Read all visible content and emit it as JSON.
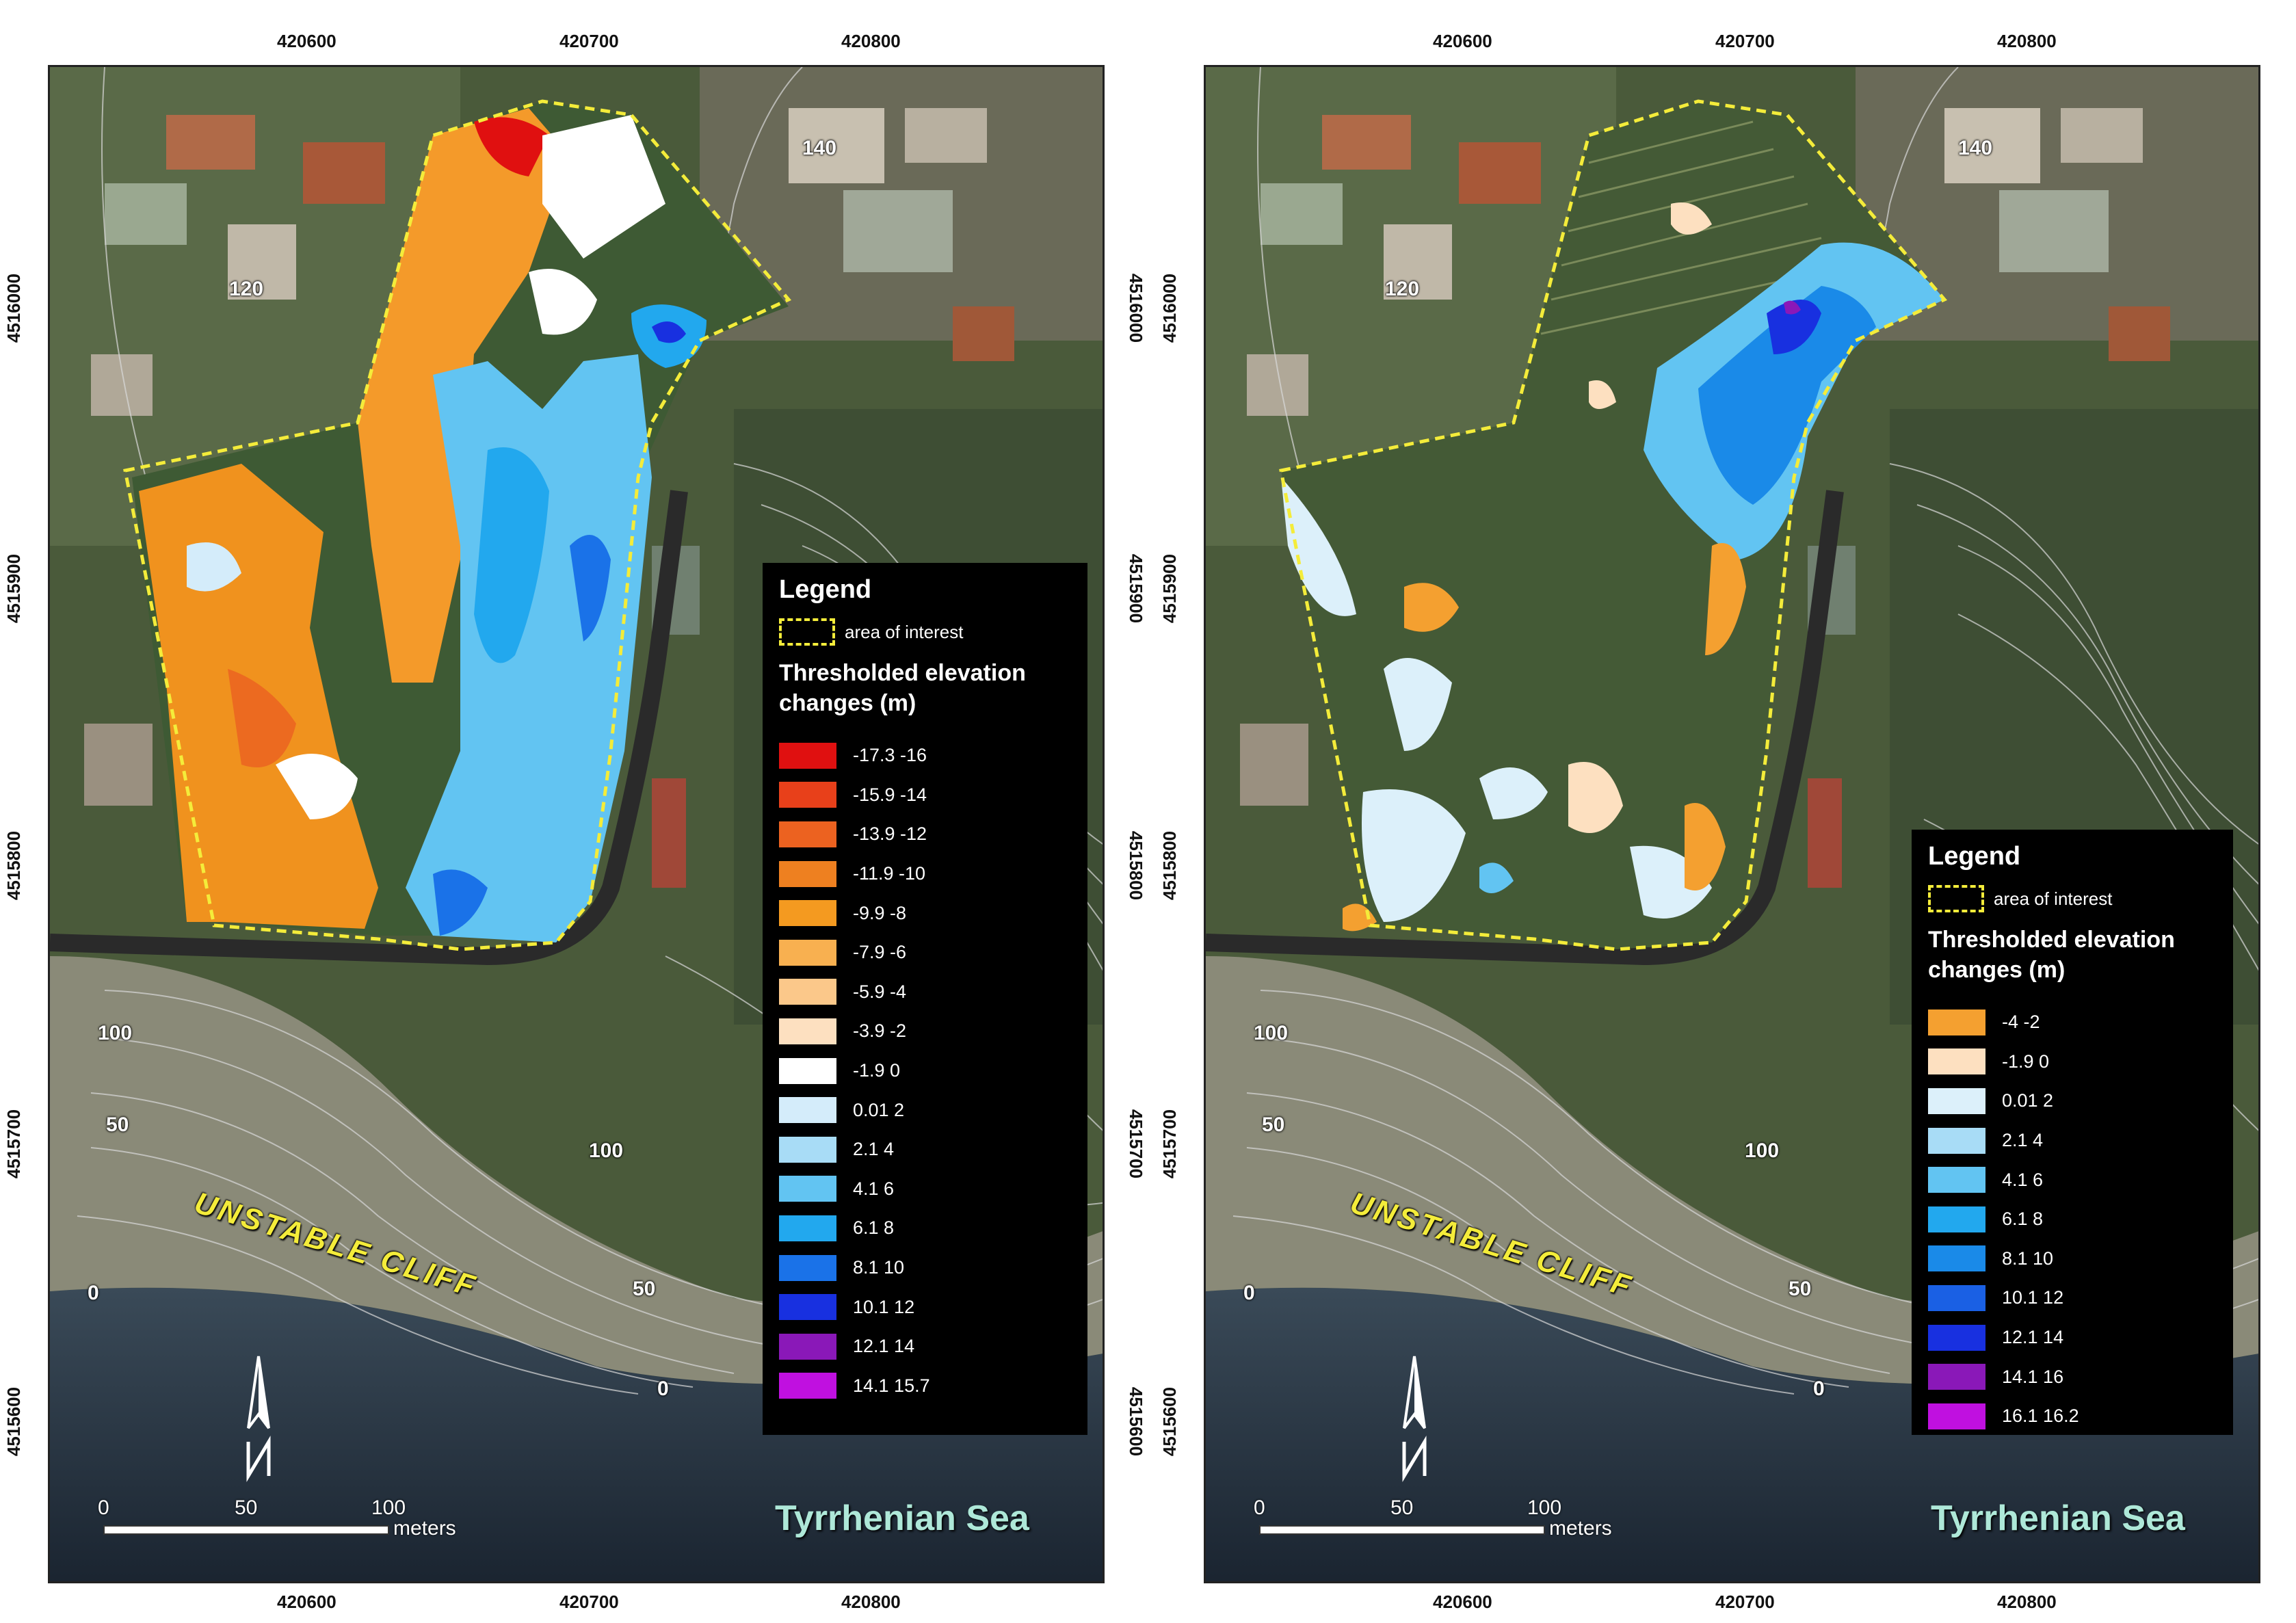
{
  "legend_title": "Legend",
  "aoi_label": "area of interest",
  "legend_subtitle_line1": "Thresholded elevation",
  "legend_subtitle_line2": "changes (m)",
  "x_ticks": [
    "420600",
    "420700",
    "420800"
  ],
  "y_ticks": [
    "4516000",
    "4515900",
    "4515800",
    "4515700",
    "4515600"
  ],
  "contours": [
    "140",
    "120",
    "100",
    "50",
    "100",
    "50",
    "0",
    "0"
  ],
  "cliff_label": "UNSTABLE CLIFF",
  "sea_label": "Tyrrhenian Sea",
  "scale": {
    "v0": "0",
    "v1": "50",
    "v2": "100",
    "unit": "meters"
  },
  "colors": {
    "aoi_outline": "#f4ec3a",
    "legend_bg": "#000000",
    "sea": "#1e2a3a"
  },
  "panels": [
    {
      "legend_items": [
        {
          "label": "-17.3  -16",
          "color": "#e01010"
        },
        {
          "label": "-15.9  -14",
          "color": "#e8401a"
        },
        {
          "label": "-13.9  -12",
          "color": "#ec6220"
        },
        {
          "label": "-11.9  -10",
          "color": "#ee8020"
        },
        {
          "label": "-9.9  -8",
          "color": "#f49a20"
        },
        {
          "label": "-7.9  -6",
          "color": "#f8b050"
        },
        {
          "label": "-5.9  -4",
          "color": "#fbc88a"
        },
        {
          "label": "-3.9  -2",
          "color": "#fde0c0"
        },
        {
          "label": "-1.9  0",
          "color": "#ffffff"
        },
        {
          "label": "0.01  2",
          "color": "#d4ecfa"
        },
        {
          "label": "2.1  4",
          "color": "#a8dcf6"
        },
        {
          "label": "4.1  6",
          "color": "#62c4f2"
        },
        {
          "label": "6.1  8",
          "color": "#22a8ee"
        },
        {
          "label": "8.1  10",
          "color": "#1a72e8"
        },
        {
          "label": "10.1  12",
          "color": "#1830e0"
        },
        {
          "label": "12.1  14",
          "color": "#8a18b8"
        },
        {
          "label": "14.1  15.7",
          "color": "#c010e0"
        }
      ]
    },
    {
      "legend_items": [
        {
          "label": "-4  -2",
          "color": "#f4a030"
        },
        {
          "label": "-1.9  0",
          "color": "#fde0c0"
        },
        {
          "label": "0.01  2",
          "color": "#dcf0fa"
        },
        {
          "label": "2.1  4",
          "color": "#a8dcf6"
        },
        {
          "label": "4.1  6",
          "color": "#62c4f2"
        },
        {
          "label": "6.1  8",
          "color": "#22a8ee"
        },
        {
          "label": "8.1  10",
          "color": "#1a8ae8"
        },
        {
          "label": "10.1  12",
          "color": "#1a60e4"
        },
        {
          "label": "12.1  14",
          "color": "#1830e0"
        },
        {
          "label": "14.1  16",
          "color": "#8a18b8"
        },
        {
          "label": "16.1  16.2",
          "color": "#c010e0"
        }
      ]
    }
  ]
}
